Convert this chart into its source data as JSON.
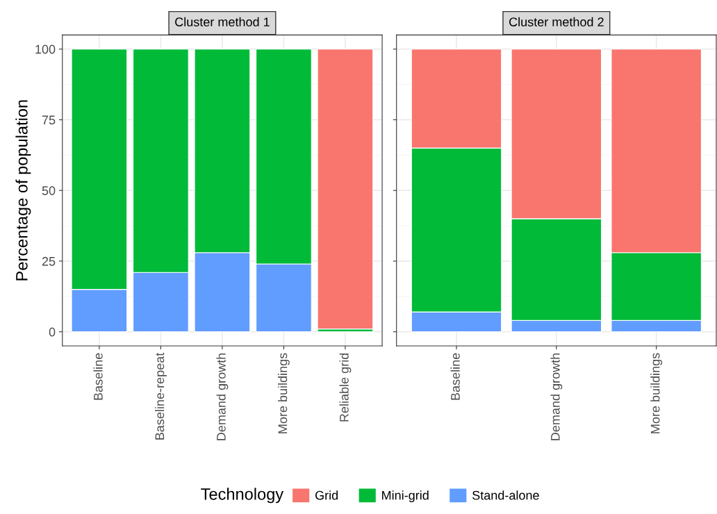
{
  "chart_data": [
    {
      "type": "bar",
      "title": "Cluster method 1",
      "ylabel": "Percentage of population",
      "legend_title": "Technology",
      "categories": [
        "Baseline",
        "Baseline-repeat",
        "Demand growth",
        "More buildings",
        "Reliable grid"
      ],
      "stacked": true,
      "ylim": [
        -5,
        105
      ],
      "yticks": [
        0,
        25,
        50,
        75,
        100
      ],
      "grid": true,
      "legend": "bottom",
      "series": [
        {
          "name": "Stand-alone",
          "color": "#619cff",
          "values": [
            15,
            21,
            28,
            24,
            null
          ]
        },
        {
          "name": "Mini-grid",
          "color": "#00ba38",
          "values": [
            85,
            79,
            72,
            76,
            1
          ]
        },
        {
          "name": "Grid",
          "color": "#f8766d",
          "values": [
            null,
            null,
            null,
            null,
            99
          ]
        }
      ]
    },
    {
      "type": "bar",
      "title": "Cluster method 2",
      "categories": [
        "Baseline",
        "Demand growth",
        "More buildings"
      ],
      "stacked": true,
      "ylim": [
        -5,
        105
      ],
      "yticks": [
        0,
        25,
        50,
        75,
        100
      ],
      "grid": true,
      "tick_labels": "x",
      "series": [
        {
          "color": "#619cff",
          "values": [
            7,
            4,
            4
          ]
        },
        {
          "color": "#00ba38",
          "values": [
            58,
            36,
            24
          ]
        },
        {
          "color": "#f8766d",
          "values": [
            35,
            60,
            72
          ]
        }
      ]
    }
  ]
}
